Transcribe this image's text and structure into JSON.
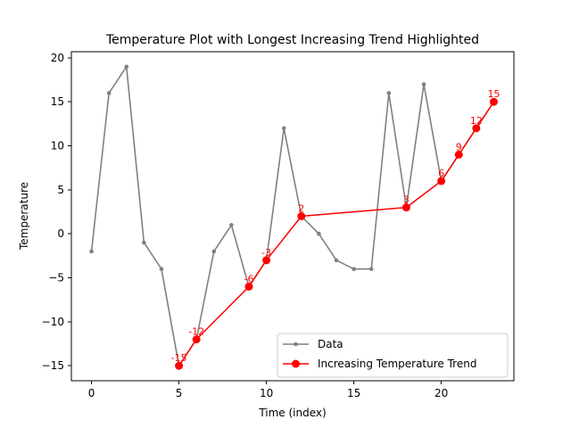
{
  "chart_data": {
    "type": "line",
    "title": "Temperature Plot with Longest Increasing Trend Highlighted",
    "xlabel": "Time (index)",
    "ylabel": "Temperature",
    "xlim": [
      -1.15,
      24.15
    ],
    "ylim": [
      -16.7,
      20.7
    ],
    "xticks": [
      0,
      5,
      10,
      15,
      20
    ],
    "yticks": [
      -15,
      -10,
      -5,
      0,
      5,
      10,
      15,
      20
    ],
    "xtick_labels": [
      "0",
      "5",
      "10",
      "15",
      "20"
    ],
    "ytick_labels": [
      "−15",
      "−10",
      "−5",
      "0",
      "5",
      "10",
      "15",
      "20"
    ],
    "grid": false,
    "legend_position": "lower-right",
    "series": [
      {
        "name": "Data",
        "color": "#808080",
        "marker": "small-circle",
        "x": [
          0,
          1,
          2,
          3,
          4,
          5,
          6,
          7,
          8,
          9,
          10,
          11,
          12,
          13,
          14,
          15,
          16,
          17,
          18,
          19,
          20,
          21,
          22,
          23
        ],
        "y": [
          -2,
          16,
          19,
          -1,
          -4,
          -15,
          -12,
          -2,
          1,
          -6,
          -3,
          12,
          2,
          0,
          -3,
          -4,
          -4,
          16,
          3,
          17,
          6,
          9,
          12,
          15
        ]
      },
      {
        "name": "Increasing Temperature Trend",
        "color": "#ff0000",
        "marker": "circle",
        "x": [
          5,
          6,
          9,
          10,
          12,
          18,
          20,
          21,
          22,
          23
        ],
        "y": [
          -15,
          -12,
          -6,
          -3,
          2,
          3,
          6,
          9,
          12,
          15
        ],
        "labels": [
          "-15",
          "-12",
          "-6",
          "-3",
          "2",
          "3",
          "6",
          "9",
          "12",
          "15"
        ]
      }
    ]
  }
}
